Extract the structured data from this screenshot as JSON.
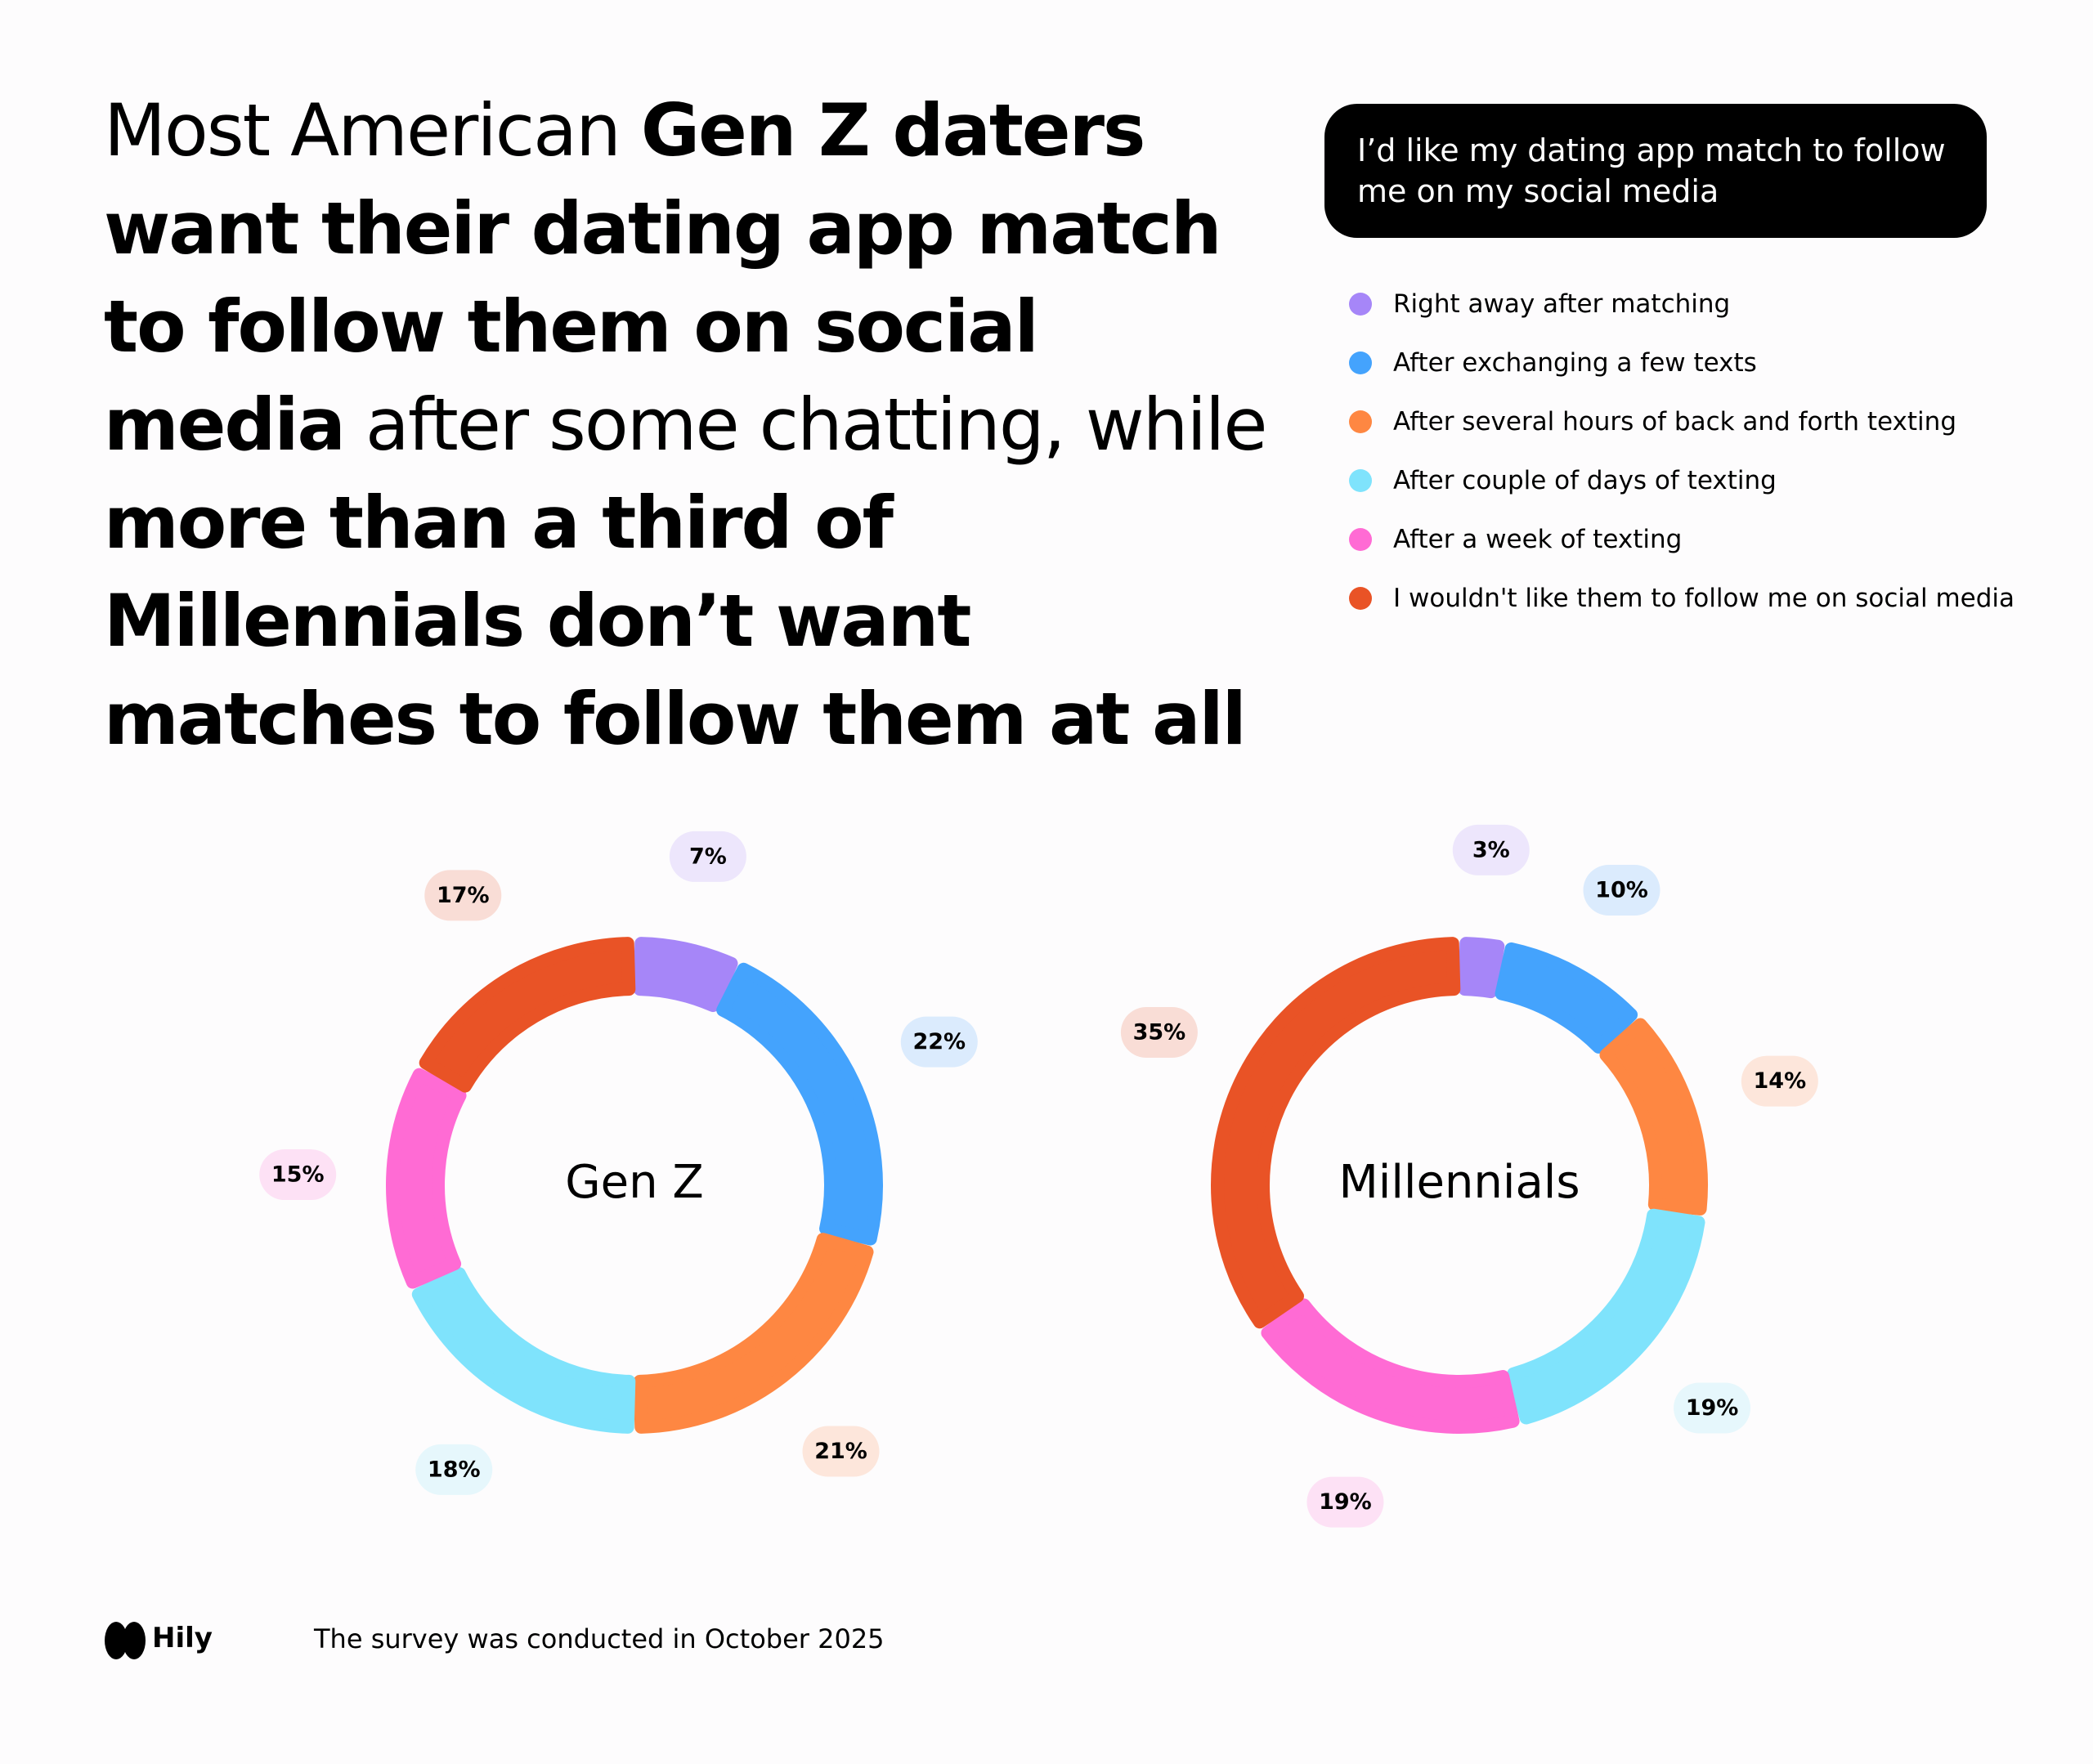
{
  "headline": [
    {
      "text": "Most American ",
      "bold": false
    },
    {
      "text": "Gen Z daters want their dating app match to follow them on social media",
      "bold": true
    },
    {
      "text": " after some chatting, while ",
      "bold": false
    },
    {
      "text": "more than a third of Millennials don’t want matches to follow them at all",
      "bold": true
    }
  ],
  "legend": {
    "title": "I’d like my dating app match to follow me on my social media",
    "items": [
      "Right away after matching",
      "After exchanging a few texts",
      "After several hours of back and forth texting",
      "After couple of days of texting",
      "After a week of texting",
      "I wouldn't like them to follow me on social media"
    ],
    "colors": [
      "#a686f8",
      "#44a3fd",
      "#fe8742",
      "#7fe3fc",
      "#ff6bd4",
      "#e95326"
    ]
  },
  "chart_data": [
    {
      "type": "donut",
      "title": "Gen Z",
      "values": [
        7,
        22,
        21,
        18,
        15,
        17
      ],
      "value_labels": [
        "7%",
        "22%",
        "21%",
        "18%",
        "15%",
        "17%"
      ]
    },
    {
      "type": "donut",
      "title": "Millennials",
      "values": [
        3,
        10,
        14,
        19,
        19,
        35
      ],
      "value_labels": [
        "3%",
        "10%",
        "14%",
        "19%",
        "19%",
        "35%"
      ]
    }
  ],
  "footer": {
    "brand": "Hily",
    "note": "The survey was conducted in October 2025"
  }
}
